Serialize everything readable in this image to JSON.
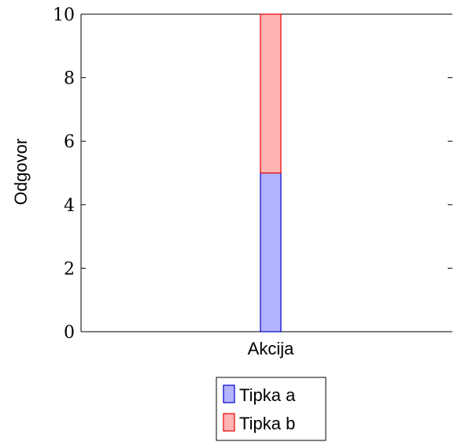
{
  "chart_data": {
    "type": "bar",
    "stacked": true,
    "categories": [
      "Akcija"
    ],
    "series": [
      {
        "name": "Tipka a",
        "values": [
          5
        ],
        "fill": "#b3b3ff",
        "stroke": "#0000cc"
      },
      {
        "name": "Tipka b",
        "values": [
          5
        ],
        "fill": "#ffb3b3",
        "stroke": "#e60000"
      }
    ],
    "title": "",
    "xlabel": "",
    "ylabel": "Odgovor",
    "ylim": [
      0,
      10
    ],
    "yticks": [
      0,
      2,
      4,
      6,
      8,
      10
    ],
    "grid": false,
    "legend_position": "bottom-center"
  }
}
